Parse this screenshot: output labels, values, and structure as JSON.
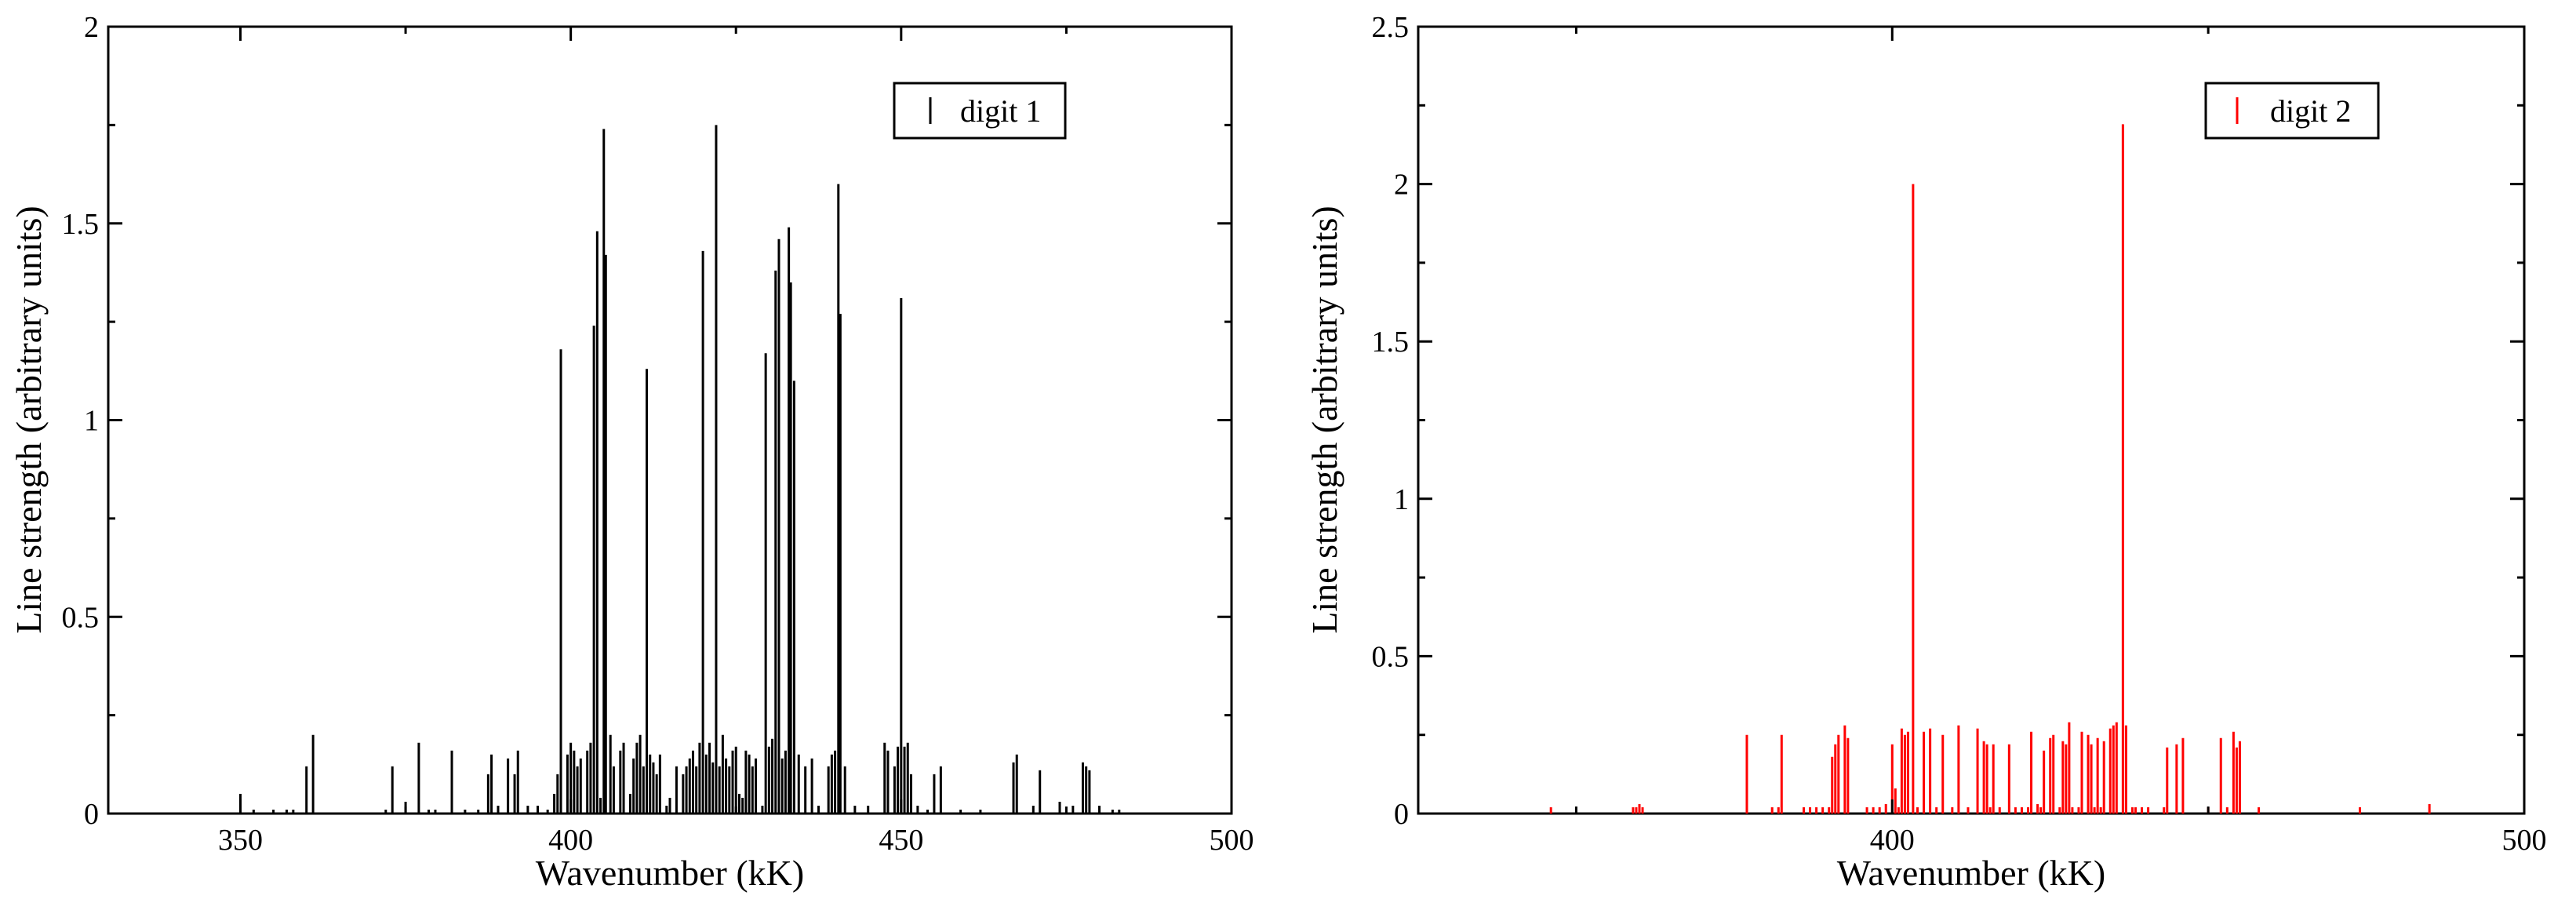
{
  "chart_data": [
    {
      "type": "bar",
      "subtype": "stick-spectrum",
      "xlabel": "Wavenumber (kK)",
      "ylabel": "Line strength (arbitrary units)",
      "xlim": [
        330,
        500
      ],
      "ylim": [
        0,
        2
      ],
      "xticks": [
        350,
        400,
        450,
        500
      ],
      "xtick_labels": [
        "350",
        "400",
        "450",
        "500"
      ],
      "yticks": [
        0,
        0.5,
        1,
        1.5,
        2
      ],
      "ytick_labels": [
        "0",
        "0.5",
        "1",
        "1.5",
        "2"
      ],
      "grid": false,
      "legend_position": "top-right",
      "series": [
        {
          "name": "digit 1",
          "color": "#000000",
          "lines": [
            [
              350.0,
              0.05
            ],
            [
              352.0,
              0.01
            ],
            [
              355.0,
              0.01
            ],
            [
              357.0,
              0.01
            ],
            [
              358.0,
              0.01
            ],
            [
              360.0,
              0.12
            ],
            [
              361.0,
              0.2
            ],
            [
              372.0,
              0.01
            ],
            [
              373.0,
              0.12
            ],
            [
              375.0,
              0.03
            ],
            [
              377.0,
              0.18
            ],
            [
              378.5,
              0.01
            ],
            [
              379.5,
              0.01
            ],
            [
              382.0,
              0.16
            ],
            [
              384.0,
              0.01
            ],
            [
              386.0,
              0.01
            ],
            [
              387.5,
              0.1
            ],
            [
              388.0,
              0.15
            ],
            [
              389.0,
              0.02
            ],
            [
              390.5,
              0.14
            ],
            [
              391.5,
              0.1
            ],
            [
              392.0,
              0.16
            ],
            [
              393.5,
              0.02
            ],
            [
              395.0,
              0.02
            ],
            [
              396.5,
              0.01
            ],
            [
              397.5,
              0.05
            ],
            [
              398.0,
              0.1
            ],
            [
              398.5,
              1.18
            ],
            [
              399.5,
              0.15
            ],
            [
              400.0,
              0.18
            ],
            [
              400.5,
              0.16
            ],
            [
              401.0,
              0.12
            ],
            [
              401.5,
              0.14
            ],
            [
              402.5,
              0.16
            ],
            [
              403.0,
              0.18
            ],
            [
              403.5,
              1.24
            ],
            [
              404.0,
              1.48
            ],
            [
              404.5,
              0.04
            ],
            [
              405.0,
              1.74
            ],
            [
              405.3,
              1.42
            ],
            [
              406.0,
              0.2
            ],
            [
              406.5,
              0.12
            ],
            [
              407.5,
              0.16
            ],
            [
              408.0,
              0.18
            ],
            [
              409.0,
              0.05
            ],
            [
              409.5,
              0.14
            ],
            [
              410.0,
              0.18
            ],
            [
              410.5,
              0.2
            ],
            [
              411.0,
              0.12
            ],
            [
              411.5,
              1.13
            ],
            [
              412.0,
              0.15
            ],
            [
              412.5,
              0.13
            ],
            [
              413.0,
              0.1
            ],
            [
              413.5,
              0.15
            ],
            [
              414.5,
              0.02
            ],
            [
              415.0,
              0.04
            ],
            [
              416.0,
              0.12
            ],
            [
              417.0,
              0.1
            ],
            [
              417.5,
              0.12
            ],
            [
              418.0,
              0.14
            ],
            [
              418.5,
              0.16
            ],
            [
              419.0,
              0.12
            ],
            [
              419.5,
              0.18
            ],
            [
              420.0,
              1.43
            ],
            [
              420.5,
              0.15
            ],
            [
              421.0,
              0.18
            ],
            [
              421.5,
              0.13
            ],
            [
              422.0,
              1.75
            ],
            [
              422.5,
              0.12
            ],
            [
              423.0,
              0.2
            ],
            [
              423.5,
              0.14
            ],
            [
              424.0,
              0.12
            ],
            [
              424.5,
              0.16
            ],
            [
              425.0,
              0.17
            ],
            [
              425.5,
              0.05
            ],
            [
              426.0,
              0.04
            ],
            [
              426.5,
              0.16
            ],
            [
              427.0,
              0.15
            ],
            [
              427.5,
              0.12
            ],
            [
              428.0,
              0.14
            ],
            [
              429.0,
              0.02
            ],
            [
              429.5,
              1.17
            ],
            [
              430.0,
              0.17
            ],
            [
              430.5,
              0.19
            ],
            [
              431.0,
              1.38
            ],
            [
              431.5,
              1.46
            ],
            [
              432.0,
              0.14
            ],
            [
              432.5,
              0.16
            ],
            [
              433.0,
              1.49
            ],
            [
              433.3,
              1.35
            ],
            [
              433.8,
              1.1
            ],
            [
              434.5,
              0.15
            ],
            [
              435.5,
              0.12
            ],
            [
              436.5,
              0.14
            ],
            [
              437.5,
              0.02
            ],
            [
              439.0,
              0.12
            ],
            [
              439.5,
              0.15
            ],
            [
              440.0,
              0.16
            ],
            [
              440.5,
              1.6
            ],
            [
              440.8,
              1.27
            ],
            [
              441.5,
              0.12
            ],
            [
              443.0,
              0.02
            ],
            [
              445.0,
              0.02
            ],
            [
              447.5,
              0.18
            ],
            [
              448.0,
              0.16
            ],
            [
              449.0,
              0.12
            ],
            [
              449.5,
              0.17
            ],
            [
              450.0,
              1.31
            ],
            [
              450.5,
              0.17
            ],
            [
              451.0,
              0.18
            ],
            [
              451.5,
              0.1
            ],
            [
              452.5,
              0.02
            ],
            [
              454.0,
              0.01
            ],
            [
              455.0,
              0.1
            ],
            [
              456.0,
              0.12
            ],
            [
              459.0,
              0.01
            ],
            [
              462.0,
              0.01
            ],
            [
              467.0,
              0.13
            ],
            [
              467.5,
              0.15
            ],
            [
              470.0,
              0.02
            ],
            [
              471.0,
              0.11
            ],
            [
              474.0,
              0.03
            ],
            [
              476.0,
              0.02
            ],
            [
              477.5,
              0.13
            ],
            [
              478.0,
              0.12
            ],
            [
              478.5,
              0.11
            ],
            [
              480.0,
              0.02
            ],
            [
              482.0,
              0.01
            ],
            [
              483.0,
              0.01
            ]
          ]
        }
      ]
    },
    {
      "type": "bar",
      "subtype": "stick-spectrum",
      "xlabel": "Wavenumber (kK)",
      "ylabel": "Line strength (arbitrary units)",
      "xlim": [
        325,
        500
      ],
      "ylim": [
        0,
        2.5
      ],
      "xticks": [
        400,
        500
      ],
      "xtick_labels": [
        "400",
        "500"
      ],
      "yticks": [
        0,
        0.5,
        1,
        1.5,
        2,
        2.5
      ],
      "ytick_labels": [
        "0",
        "0.5",
        "1",
        "1.5",
        "2",
        "2.5"
      ],
      "grid": false,
      "legend_position": "top-right",
      "series": [
        {
          "name": "digit 2",
          "color": "#ff0000",
          "lines": [
            [
              346.0,
              0.02
            ],
            [
              359.0,
              0.02
            ],
            [
              359.5,
              0.02
            ],
            [
              360.0,
              0.03
            ],
            [
              360.5,
              0.02
            ],
            [
              377.0,
              0.25
            ],
            [
              381.0,
              0.02
            ],
            [
              382.0,
              0.02
            ],
            [
              382.5,
              0.25
            ],
            [
              386.0,
              0.02
            ],
            [
              387.0,
              0.02
            ],
            [
              388.0,
              0.02
            ],
            [
              389.0,
              0.02
            ],
            [
              390.0,
              0.02
            ],
            [
              390.5,
              0.18
            ],
            [
              391.0,
              0.22
            ],
            [
              391.5,
              0.25
            ],
            [
              392.5,
              0.28
            ],
            [
              393.0,
              0.24
            ],
            [
              396.0,
              0.02
            ],
            [
              397.0,
              0.02
            ],
            [
              398.0,
              0.02
            ],
            [
              399.0,
              0.03
            ],
            [
              400.0,
              0.22
            ],
            [
              400.5,
              0.08
            ],
            [
              401.0,
              0.02
            ],
            [
              401.5,
              0.27
            ],
            [
              402.0,
              0.25
            ],
            [
              402.5,
              0.26
            ],
            [
              403.3,
              2.0
            ],
            [
              404.0,
              0.02
            ],
            [
              405.0,
              0.26
            ],
            [
              406.0,
              0.27
            ],
            [
              407.0,
              0.02
            ],
            [
              408.0,
              0.25
            ],
            [
              409.5,
              0.02
            ],
            [
              410.5,
              0.28
            ],
            [
              412.0,
              0.02
            ],
            [
              413.5,
              0.27
            ],
            [
              414.5,
              0.23
            ],
            [
              415.0,
              0.22
            ],
            [
              415.5,
              0.02
            ],
            [
              416.0,
              0.22
            ],
            [
              417.0,
              0.02
            ],
            [
              418.5,
              0.22
            ],
            [
              419.5,
              0.02
            ],
            [
              420.5,
              0.02
            ],
            [
              421.5,
              0.02
            ],
            [
              422.0,
              0.26
            ],
            [
              423.0,
              0.03
            ],
            [
              423.5,
              0.02
            ],
            [
              424.0,
              0.2
            ],
            [
              425.0,
              0.24
            ],
            [
              425.5,
              0.25
            ],
            [
              426.5,
              0.02
            ],
            [
              427.0,
              0.23
            ],
            [
              427.5,
              0.22
            ],
            [
              428.0,
              0.29
            ],
            [
              428.5,
              0.02
            ],
            [
              429.5,
              0.02
            ],
            [
              430.0,
              0.26
            ],
            [
              431.0,
              0.25
            ],
            [
              431.5,
              0.22
            ],
            [
              432.0,
              0.02
            ],
            [
              432.5,
              0.24
            ],
            [
              433.0,
              0.02
            ],
            [
              433.5,
              0.23
            ],
            [
              434.5,
              0.27
            ],
            [
              435.0,
              0.28
            ],
            [
              435.5,
              0.29
            ],
            [
              436.5,
              2.19
            ],
            [
              437.0,
              0.28
            ],
            [
              438.0,
              0.02
            ],
            [
              438.5,
              0.02
            ],
            [
              439.5,
              0.02
            ],
            [
              440.5,
              0.02
            ],
            [
              443.0,
              0.02
            ],
            [
              443.5,
              0.21
            ],
            [
              445.0,
              0.22
            ],
            [
              446.0,
              0.24
            ],
            [
              450.0,
              0.02
            ],
            [
              452.0,
              0.24
            ],
            [
              453.0,
              0.02
            ],
            [
              454.0,
              0.26
            ],
            [
              454.5,
              0.21
            ],
            [
              455.0,
              0.23
            ],
            [
              458.0,
              0.02
            ],
            [
              474.0,
              0.02
            ],
            [
              485.0,
              0.03
            ]
          ]
        }
      ]
    }
  ]
}
